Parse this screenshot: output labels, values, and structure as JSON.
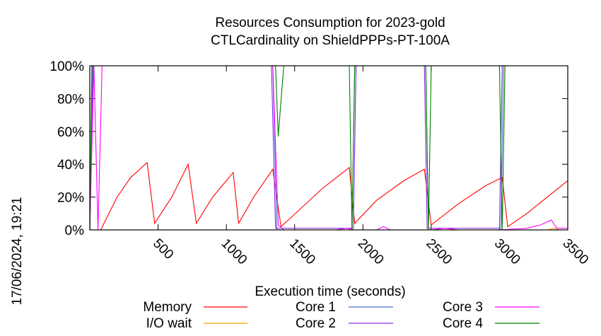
{
  "chart_data": {
    "type": "line",
    "title": "Resources Consumption for 2023-gold",
    "subtitle": "CTLCardinality on ShieldPPPs-PT-100A",
    "xlabel": "Execution time (seconds)",
    "ylabel": "",
    "side_label": "17/06/2024, 19:21",
    "xlim": [
      0,
      3500
    ],
    "ylim": [
      0,
      100
    ],
    "x_ticks": [
      500,
      1000,
      1500,
      2000,
      2500,
      3000,
      3500
    ],
    "x_tick_labels": [
      "500",
      "1000",
      "1500",
      "2000",
      "2500",
      "3000",
      "3500"
    ],
    "y_ticks": [
      0,
      20,
      40,
      60,
      80,
      100
    ],
    "y_tick_labels": [
      "0%",
      "20%",
      "40%",
      "60%",
      "80%",
      "100%"
    ],
    "legend_position": "bottom",
    "series": [
      {
        "name": "Memory",
        "color": "#ff0000",
        "points": [
          [
            0,
            0
          ],
          [
            80,
            0
          ],
          [
            110,
            5
          ],
          [
            200,
            20
          ],
          [
            300,
            32
          ],
          [
            420,
            41
          ],
          [
            475,
            4
          ],
          [
            600,
            20
          ],
          [
            720,
            40
          ],
          [
            780,
            4
          ],
          [
            900,
            20
          ],
          [
            1050,
            35
          ],
          [
            1090,
            4
          ],
          [
            1200,
            20
          ],
          [
            1340,
            37
          ],
          [
            1400,
            2
          ],
          [
            1480,
            8
          ],
          [
            1700,
            25
          ],
          [
            1900,
            38
          ],
          [
            1940,
            4
          ],
          [
            2100,
            18
          ],
          [
            2300,
            30
          ],
          [
            2450,
            37
          ],
          [
            2500,
            3
          ],
          [
            2700,
            16
          ],
          [
            2900,
            27
          ],
          [
            3020,
            32
          ],
          [
            3060,
            2
          ],
          [
            3200,
            10
          ],
          [
            3500,
            30
          ]
        ]
      },
      {
        "name": "I/O wait",
        "color": "#ffa500",
        "points": [
          [
            0,
            0
          ],
          [
            3350,
            0
          ],
          [
            3400,
            1
          ],
          [
            3440,
            0
          ],
          [
            3500,
            0
          ]
        ]
      },
      {
        "name": "Core 1",
        "color": "#4a6fd3",
        "points": [
          [
            0,
            0
          ],
          [
            20,
            100
          ],
          [
            1340,
            100
          ],
          [
            1370,
            0
          ],
          [
            1920,
            0
          ],
          [
            1940,
            100
          ],
          [
            2460,
            100
          ],
          [
            2480,
            0
          ],
          [
            3010,
            0
          ],
          [
            3030,
            100
          ],
          [
            3500,
            100
          ]
        ]
      },
      {
        "name": "Core 2",
        "color": "#8a2be2",
        "points": [
          [
            0,
            0
          ],
          [
            25,
            100
          ],
          [
            1330,
            100
          ],
          [
            1360,
            1
          ],
          [
            1930,
            1
          ],
          [
            1950,
            100
          ],
          [
            2450,
            100
          ],
          [
            2470,
            1
          ],
          [
            3000,
            1
          ],
          [
            3020,
            100
          ],
          [
            3500,
            100
          ]
        ]
      },
      {
        "name": "Core 3",
        "color": "#ff00ff",
        "points": [
          [
            0,
            0
          ],
          [
            30,
            100
          ],
          [
            60,
            0
          ],
          [
            90,
            100
          ],
          [
            1340,
            100
          ],
          [
            1380,
            3
          ],
          [
            1420,
            0
          ],
          [
            1800,
            0
          ],
          [
            1880,
            1
          ],
          [
            1940,
            0
          ],
          [
            2100,
            0
          ],
          [
            2150,
            2
          ],
          [
            2200,
            0
          ],
          [
            2500,
            0
          ],
          [
            2600,
            1
          ],
          [
            2700,
            0
          ],
          [
            3000,
            0
          ],
          [
            3200,
            1
          ],
          [
            3300,
            3
          ],
          [
            3380,
            6
          ],
          [
            3420,
            1
          ],
          [
            3500,
            1
          ]
        ]
      },
      {
        "name": "Core 4",
        "color": "#008000",
        "points": [
          [
            0,
            0
          ],
          [
            15,
            100
          ],
          [
            1360,
            100
          ],
          [
            1380,
            57
          ],
          [
            1420,
            100
          ],
          [
            1900,
            100
          ],
          [
            1920,
            0
          ],
          [
            1940,
            100
          ],
          [
            2460,
            100
          ],
          [
            2480,
            0
          ],
          [
            2500,
            100
          ],
          [
            3000,
            100
          ],
          [
            3020,
            0
          ],
          [
            3040,
            100
          ],
          [
            3500,
            100
          ]
        ]
      }
    ]
  }
}
